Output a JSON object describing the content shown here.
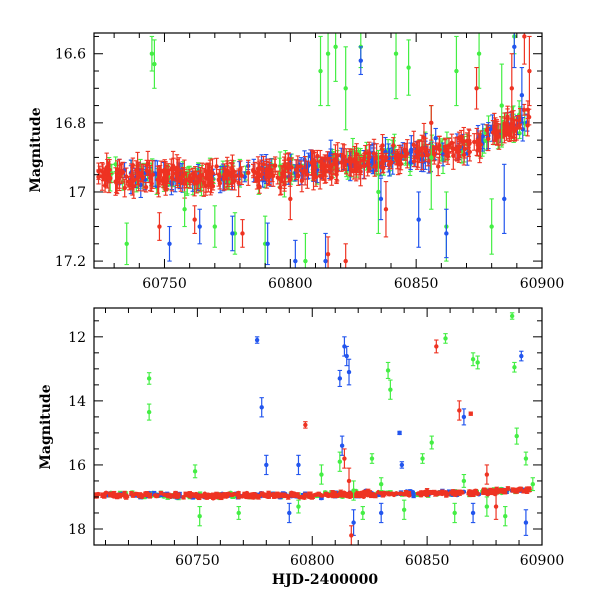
{
  "chart_data": [
    {
      "type": "scatter",
      "title": "",
      "xlabel": "",
      "ylabel": "Magnitude",
      "xlim": [
        60722,
        60900
      ],
      "ylim": [
        17.22,
        16.54
      ],
      "y_inverted": true,
      "x_ticks": [
        60750,
        60800,
        60850,
        60900
      ],
      "y_ticks": [
        16.6,
        16.8,
        17,
        17.2
      ],
      "x_tick_labels": [
        "60750",
        "60800",
        "60850",
        "60900"
      ],
      "y_tick_labels": [
        "16.6",
        "16.8",
        "17",
        "17.2"
      ],
      "series_colors": {
        "green": "#44ee44",
        "blue": "#2255ee",
        "red": "#ee3322"
      },
      "trend": [
        [
          60722,
          16.95
        ],
        [
          60760,
          16.96
        ],
        [
          60800,
          16.94
        ],
        [
          60840,
          16.9
        ],
        [
          60870,
          16.87
        ],
        [
          60895,
          16.78
        ]
      ],
      "scatter_sigma": 0.022,
      "error_scale": 0.035,
      "outliers": [
        {
          "color": "green",
          "points": [
            [
              60735,
              17.15,
              0.06
            ],
            [
              60745,
              16.6,
              0.05
            ],
            [
              60746,
              16.63,
              0.07
            ],
            [
              60758,
              17.05,
              0.05
            ],
            [
              60770,
              17.1,
              0.06
            ],
            [
              60778,
              17.12,
              0.06
            ],
            [
              60790,
              17.15,
              0.08
            ],
            [
              60806,
              17.2,
              0.08
            ],
            [
              60812,
              16.65,
              0.1
            ],
            [
              60815,
              16.6,
              0.15
            ],
            [
              60818,
              16.58,
              0.1
            ],
            [
              60822,
              16.7,
              0.12
            ],
            [
              60828,
              16.58,
              0.06
            ],
            [
              60835,
              17.0,
              0.12
            ],
            [
              60842,
              16.6,
              0.13
            ],
            [
              60847,
              16.64,
              0.08
            ],
            [
              60856,
              16.9,
              0.15
            ],
            [
              60862,
              17.1,
              0.1
            ],
            [
              60866,
              16.65,
              0.1
            ],
            [
              60875,
              16.6,
              0.1
            ],
            [
              60880,
              17.1,
              0.08
            ],
            [
              60884,
              16.75,
              0.12
            ],
            [
              60889,
              16.55,
              0.05
            ]
          ]
        },
        {
          "color": "blue",
          "points": [
            [
              60752,
              17.15,
              0.05
            ],
            [
              60764,
              17.1,
              0.05
            ],
            [
              60777,
              17.12,
              0.05
            ],
            [
              60791,
              17.15,
              0.06
            ],
            [
              60802,
              17.2,
              0.06
            ],
            [
              60814,
              17.2,
              0.08
            ],
            [
              60828,
              16.62,
              0.04
            ],
            [
              60836,
              17.02,
              0.06
            ],
            [
              60851,
              17.08,
              0.08
            ],
            [
              60862,
              17.12,
              0.07
            ],
            [
              60885,
              17.02,
              0.1
            ],
            [
              60889,
              16.58,
              0.06
            ],
            [
              60892,
              16.72,
              0.08
            ]
          ]
        },
        {
          "color": "red",
          "points": [
            [
              60748,
              17.1,
              0.04
            ],
            [
              60762,
              17.08,
              0.04
            ],
            [
              60781,
              17.12,
              0.04
            ],
            [
              60800,
              17.02,
              0.06
            ],
            [
              60815,
              17.18,
              0.05
            ],
            [
              60822,
              17.2,
              0.05
            ],
            [
              60838,
              17.05,
              0.08
            ],
            [
              60856,
              16.8,
              0.05
            ],
            [
              60874,
              16.7,
              0.06
            ],
            [
              60888,
              16.7,
              0.1
            ],
            [
              60893,
              16.55,
              0.08
            ],
            [
              60895,
              16.65,
              0.1
            ]
          ]
        }
      ]
    },
    {
      "type": "scatter",
      "title": "",
      "xlabel": "HJD-2400000",
      "ylabel": "Magnitude",
      "xlim": [
        60705,
        60900
      ],
      "ylim": [
        18.5,
        11.1
      ],
      "y_inverted": true,
      "x_ticks": [
        60750,
        60800,
        60850,
        60900
      ],
      "y_ticks": [
        12,
        14,
        16,
        18
      ],
      "x_tick_labels": [
        "60750",
        "60800",
        "60850",
        "60900"
      ],
      "y_tick_labels": [
        "12",
        "14",
        "16",
        "18"
      ],
      "series_colors": {
        "green": "#44ee44",
        "blue": "#2255ee",
        "red": "#ee3322"
      },
      "trend": [
        [
          60705,
          16.93
        ],
        [
          60760,
          16.96
        ],
        [
          60800,
          16.94
        ],
        [
          60840,
          16.9
        ],
        [
          60870,
          16.87
        ],
        [
          60895,
          16.78
        ]
      ],
      "scatter_sigma": 0.05,
      "error_scale": 0.06,
      "outliers": [
        {
          "color": "green",
          "points": [
            [
              60729,
              13.3,
              0.18
            ],
            [
              60729,
              14.35,
              0.25
            ],
            [
              60749,
              16.2,
              0.2
            ],
            [
              60751,
              17.6,
              0.3
            ],
            [
              60768,
              17.5,
              0.2
            ],
            [
              60794,
              17.3,
              0.2
            ],
            [
              60804,
              16.3,
              0.3
            ],
            [
              60812,
              15.9,
              0.3
            ],
            [
              60818,
              16.8,
              0.3
            ],
            [
              60822,
              17.5,
              0.2
            ],
            [
              60826,
              15.8,
              0.15
            ],
            [
              60830,
              16.6,
              0.2
            ],
            [
              60833,
              13.05,
              0.25
            ],
            [
              60834,
              13.65,
              0.3
            ],
            [
              60840,
              17.4,
              0.3
            ],
            [
              60848,
              15.8,
              0.15
            ],
            [
              60852,
              15.3,
              0.2
            ],
            [
              60858,
              12.05,
              0.15
            ],
            [
              60862,
              17.5,
              0.3
            ],
            [
              60866,
              16.5,
              0.2
            ],
            [
              60870,
              12.7,
              0.2
            ],
            [
              60872,
              12.8,
              0.2
            ],
            [
              60876,
              17.3,
              0.3
            ],
            [
              60884,
              17.6,
              0.3
            ],
            [
              60887,
              11.35,
              0.1
            ],
            [
              60888,
              12.95,
              0.15
            ],
            [
              60889,
              15.1,
              0.25
            ],
            [
              60893,
              15.8,
              0.2
            ],
            [
              60896,
              16.6,
              0.2
            ]
          ]
        },
        {
          "color": "blue",
          "points": [
            [
              60776,
              12.1,
              0.1
            ],
            [
              60778,
              14.2,
              0.3
            ],
            [
              60780,
              16.0,
              0.3
            ],
            [
              60790,
              17.5,
              0.3
            ],
            [
              60794,
              16.0,
              0.3
            ],
            [
              60812,
              13.3,
              0.25
            ],
            [
              60813,
              15.4,
              0.3
            ],
            [
              60814,
              12.3,
              0.3
            ],
            [
              60815,
              12.6,
              0.3
            ],
            [
              60816,
              13.1,
              0.4
            ],
            [
              60818,
              17.8,
              0.4
            ],
            [
              60830,
              17.5,
              0.3
            ],
            [
              60838,
              15.0,
              0.05
            ],
            [
              60839,
              16.0,
              0.1
            ],
            [
              60866,
              14.5,
              0.25
            ],
            [
              60870,
              17.5,
              0.3
            ],
            [
              60891,
              12.6,
              0.15
            ],
            [
              60893,
              17.8,
              0.4
            ]
          ]
        },
        {
          "color": "red",
          "points": [
            [
              60797,
              14.75,
              0.1
            ],
            [
              60814,
              15.8,
              0.3
            ],
            [
              60816,
              16.5,
              0.4
            ],
            [
              60817,
              18.2,
              0.3
            ],
            [
              60854,
              12.3,
              0.2
            ],
            [
              60864,
              14.3,
              0.3
            ],
            [
              60869,
              14.4,
              0.05
            ],
            [
              60876,
              16.3,
              0.3
            ],
            [
              60880,
              17.3,
              0.4
            ]
          ]
        }
      ]
    }
  ]
}
